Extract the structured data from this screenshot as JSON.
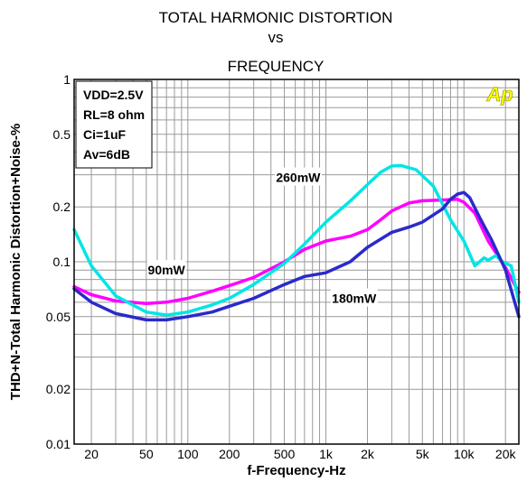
{
  "chart_data": {
    "type": "line",
    "title_lines": [
      "TOTAL HARMONIC DISTORTION",
      "vs",
      "FREQUENCY"
    ],
    "xlabel": "f-Frequency-Hz",
    "ylabel": "THD+N-Total Harmonic Distortion+Noise-%",
    "x_scale": "log",
    "y_scale": "log",
    "xlim": [
      15,
      25000
    ],
    "ylim": [
      0.01,
      1
    ],
    "grid": true,
    "x_ticks": [
      {
        "value": 20,
        "label": "20"
      },
      {
        "value": 50,
        "label": "50"
      },
      {
        "value": 100,
        "label": "100"
      },
      {
        "value": 200,
        "label": "200"
      },
      {
        "value": 500,
        "label": "500"
      },
      {
        "value": 1000,
        "label": "1k"
      },
      {
        "value": 2000,
        "label": "2k"
      },
      {
        "value": 5000,
        "label": "5k"
      },
      {
        "value": 10000,
        "label": "10k"
      },
      {
        "value": 20000,
        "label": "20k"
      }
    ],
    "y_ticks": [
      {
        "value": 0.01,
        "label": "0.01"
      },
      {
        "value": 0.02,
        "label": "0.02"
      },
      {
        "value": 0.05,
        "label": "0.05"
      },
      {
        "value": 0.1,
        "label": "0.1"
      },
      {
        "value": 0.2,
        "label": "0.2"
      },
      {
        "value": 0.5,
        "label": "0.5"
      },
      {
        "value": 1,
        "label": "1"
      }
    ],
    "conditions": [
      "VDD=2.5V",
      "RL=8 ohm",
      "Ci=1uF",
      "Av=6dB"
    ],
    "series": [
      {
        "name": "90mW",
        "color": "#ff00ff",
        "points": [
          [
            15,
            0.073
          ],
          [
            20,
            0.066
          ],
          [
            30,
            0.061
          ],
          [
            50,
            0.059
          ],
          [
            70,
            0.06
          ],
          [
            100,
            0.063
          ],
          [
            150,
            0.069
          ],
          [
            200,
            0.074
          ],
          [
            300,
            0.082
          ],
          [
            500,
            0.1
          ],
          [
            700,
            0.117
          ],
          [
            1000,
            0.13
          ],
          [
            1500,
            0.138
          ],
          [
            2000,
            0.15
          ],
          [
            2500,
            0.17
          ],
          [
            3000,
            0.19
          ],
          [
            4000,
            0.21
          ],
          [
            5000,
            0.216
          ],
          [
            7000,
            0.218
          ],
          [
            9000,
            0.22
          ],
          [
            10000,
            0.212
          ],
          [
            12000,
            0.185
          ],
          [
            15000,
            0.13
          ],
          [
            20000,
            0.093
          ],
          [
            25000,
            0.068
          ]
        ]
      },
      {
        "name": "260mW",
        "color": "#00e5e5",
        "points": [
          [
            15,
            0.15
          ],
          [
            20,
            0.095
          ],
          [
            30,
            0.065
          ],
          [
            50,
            0.053
          ],
          [
            70,
            0.051
          ],
          [
            100,
            0.053
          ],
          [
            150,
            0.058
          ],
          [
            200,
            0.063
          ],
          [
            300,
            0.075
          ],
          [
            500,
            0.098
          ],
          [
            700,
            0.125
          ],
          [
            1000,
            0.165
          ],
          [
            1500,
            0.215
          ],
          [
            2000,
            0.265
          ],
          [
            2500,
            0.31
          ],
          [
            3000,
            0.335
          ],
          [
            3500,
            0.337
          ],
          [
            4500,
            0.32
          ],
          [
            6000,
            0.26
          ],
          [
            8000,
            0.17
          ],
          [
            10000,
            0.13
          ],
          [
            12000,
            0.095
          ],
          [
            14000,
            0.105
          ],
          [
            15000,
            0.102
          ],
          [
            17000,
            0.108
          ],
          [
            19000,
            0.1
          ],
          [
            22000,
            0.095
          ],
          [
            25000,
            0.06
          ]
        ]
      },
      {
        "name": "180mW",
        "color": "#2a2acc",
        "points": [
          [
            15,
            0.071
          ],
          [
            20,
            0.06
          ],
          [
            30,
            0.052
          ],
          [
            50,
            0.048
          ],
          [
            70,
            0.048
          ],
          [
            100,
            0.05
          ],
          [
            150,
            0.053
          ],
          [
            200,
            0.057
          ],
          [
            300,
            0.063
          ],
          [
            500,
            0.075
          ],
          [
            700,
            0.083
          ],
          [
            1000,
            0.087
          ],
          [
            1500,
            0.1
          ],
          [
            2000,
            0.12
          ],
          [
            3000,
            0.145
          ],
          [
            4000,
            0.155
          ],
          [
            5000,
            0.165
          ],
          [
            7000,
            0.195
          ],
          [
            8000,
            0.22
          ],
          [
            9000,
            0.235
          ],
          [
            10000,
            0.24
          ],
          [
            11000,
            0.225
          ],
          [
            13000,
            0.175
          ],
          [
            16000,
            0.13
          ],
          [
            20000,
            0.09
          ],
          [
            25000,
            0.05
          ]
        ]
      }
    ],
    "series_labels": [
      {
        "series": "260mW",
        "text": "260mW",
        "at": [
          630,
          0.29
        ]
      },
      {
        "series": "90mW",
        "text": "90mW",
        "at": [
          70,
          0.09
        ]
      },
      {
        "series": "180mW",
        "text": "180mW",
        "at": [
          1600,
          0.063
        ]
      }
    ]
  },
  "logo": {
    "text": "Ap",
    "color": "#ffff00"
  }
}
